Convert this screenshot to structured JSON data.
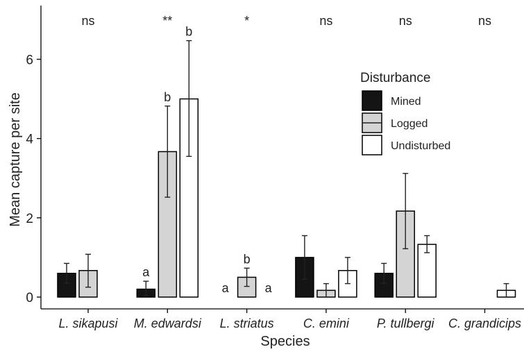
{
  "chart_data": {
    "type": "bar",
    "xlabel": "Species",
    "ylabel": "Mean capture per site",
    "ylim": [
      0,
      7.3
    ],
    "yticks": [
      0,
      2,
      4,
      6
    ],
    "grid": false,
    "legend_position": "right, inside plot",
    "legend_title": "Disturbance",
    "categories": [
      "L. sikapusi",
      "M. edwardsi",
      "L. striatus",
      "C. emini",
      "P. tullbergi",
      "C. grandicips"
    ],
    "significance": [
      "ns",
      "**",
      "*",
      "ns",
      "ns",
      "ns"
    ],
    "series": [
      {
        "name": "Mined",
        "color": "#141414",
        "values": [
          0.6,
          0.2,
          0.0,
          1.0,
          0.6,
          0.0
        ],
        "error_low": [
          0.35,
          0.03,
          null,
          0.45,
          0.35,
          null
        ],
        "error_high": [
          0.85,
          0.4,
          null,
          1.55,
          0.85,
          null
        ],
        "letters": [
          "",
          "a",
          "a",
          "",
          "",
          ""
        ]
      },
      {
        "name": "Logged",
        "color": "#d4d4d4",
        "values": [
          0.67,
          3.67,
          0.5,
          0.17,
          2.17,
          0.0
        ],
        "error_low": [
          0.25,
          2.52,
          0.27,
          0.0,
          1.22,
          null
        ],
        "error_high": [
          1.08,
          4.82,
          0.73,
          0.34,
          3.12,
          null
        ],
        "letters": [
          "",
          "b",
          "b",
          "",
          "",
          ""
        ]
      },
      {
        "name": "Undisturbed",
        "color": "#ffffff",
        "values": [
          0.0,
          5.0,
          0.0,
          0.67,
          1.33,
          0.17
        ],
        "error_low": [
          null,
          3.55,
          null,
          0.34,
          1.12,
          0.0
        ],
        "error_high": [
          null,
          6.47,
          null,
          1.0,
          1.55,
          0.34
        ],
        "letters": [
          "",
          "b",
          "a",
          "",
          "",
          ""
        ]
      }
    ]
  }
}
